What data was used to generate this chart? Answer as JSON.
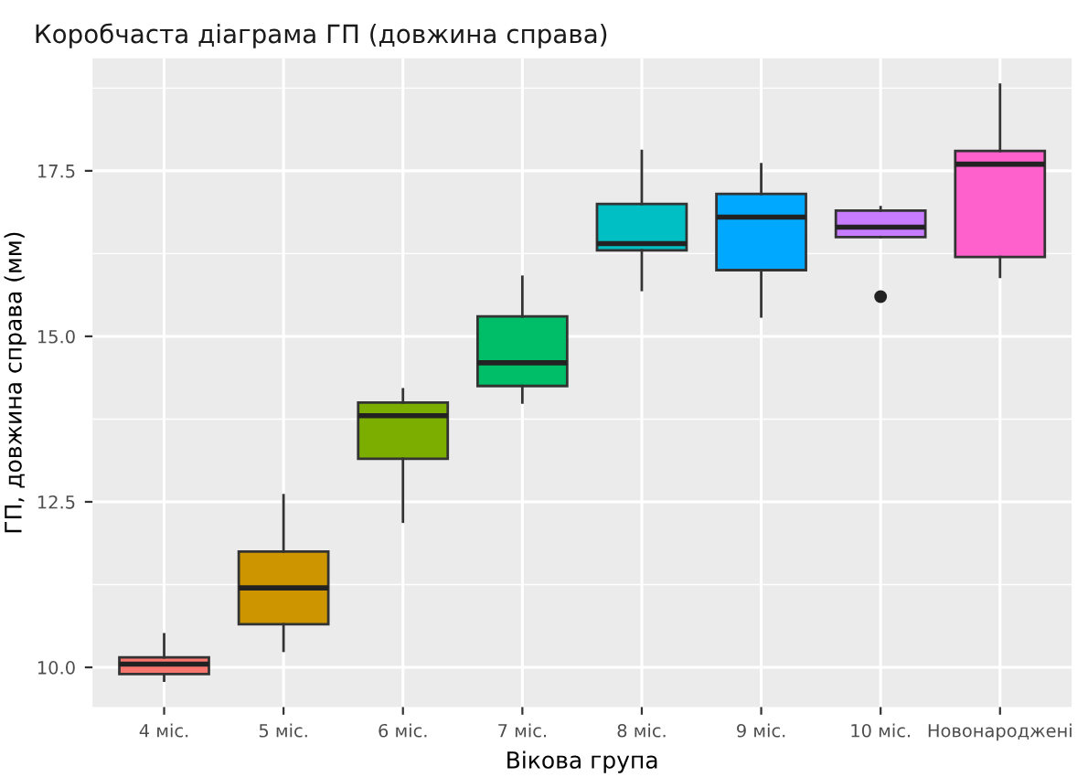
{
  "chart_data": {
    "type": "box",
    "title": "Коробчаста діаграма ГП (довжина справа)",
    "xlabel": "Вікова група",
    "ylabel": "ГП, довжина справа (мм)",
    "categories": [
      "4 міс.",
      "5 міс.",
      "6 міс.",
      "7 міс.",
      "8 міс.",
      "9 міс.",
      "10 міс.",
      "Новонароджені"
    ],
    "colors": [
      "#f8766d",
      "#cd9600",
      "#7cae00",
      "#00be67",
      "#00bfc4",
      "#00a9ff",
      "#c77cff",
      "#ff61cc"
    ],
    "boxes": [
      {
        "low": 9.8,
        "q1": 9.9,
        "median": 10.05,
        "q3": 10.15,
        "high": 10.5
      },
      {
        "low": 10.25,
        "q1": 10.65,
        "median": 11.2,
        "q3": 11.75,
        "high": 12.6
      },
      {
        "low": 12.2,
        "q1": 13.15,
        "median": 13.8,
        "q3": 14.0,
        "high": 14.2
      },
      {
        "low": 14.0,
        "q1": 14.25,
        "median": 14.6,
        "q3": 15.3,
        "high": 15.9
      },
      {
        "low": 15.7,
        "q1": 16.3,
        "median": 16.4,
        "q3": 17.0,
        "high": 17.8
      },
      {
        "low": 15.3,
        "q1": 16.0,
        "median": 16.8,
        "q3": 17.15,
        "high": 17.6
      },
      {
        "low": 16.5,
        "q1": 16.5,
        "median": 16.65,
        "q3": 16.9,
        "high": 16.95,
        "outliers": [
          15.6
        ]
      },
      {
        "low": 15.9,
        "q1": 16.2,
        "median": 17.6,
        "q3": 17.8,
        "high": 18.8
      }
    ],
    "ylim": [
      9.4,
      19.2
    ],
    "yticks": [
      {
        "value": 10,
        "label": "10.0"
      },
      {
        "value": 12.5,
        "label": "12.5"
      },
      {
        "value": 15,
        "label": "15.0"
      },
      {
        "value": 17.5,
        "label": "17.5"
      }
    ],
    "grid": true
  }
}
